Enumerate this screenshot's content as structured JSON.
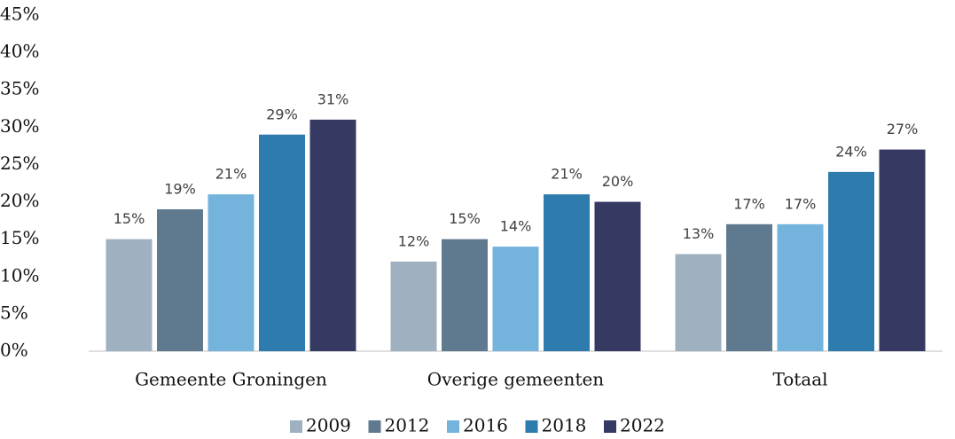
{
  "chart_data": {
    "type": "bar",
    "categories": [
      "Gemeente Groningen",
      "Overige gemeenten",
      "Totaal"
    ],
    "series": [
      {
        "name": "2009",
        "color": "#9fb1c0",
        "values": [
          15,
          12,
          13
        ],
        "value_labels": [
          "15%",
          "12%",
          "13%"
        ]
      },
      {
        "name": "2012",
        "color": "#5f7a8f",
        "values": [
          19,
          15,
          17
        ],
        "value_labels": [
          "19%",
          "15%",
          "17%"
        ]
      },
      {
        "name": "2016",
        "color": "#74b3dc",
        "values": [
          21,
          14,
          17
        ],
        "value_labels": [
          "21%",
          "14%",
          "17%"
        ]
      },
      {
        "name": "2018",
        "color": "#2e7bad",
        "values": [
          29,
          21,
          24
        ],
        "value_labels": [
          "29%",
          "21%",
          "24%"
        ]
      },
      {
        "name": "2022",
        "color": "#363a63",
        "values": [
          31,
          20,
          27
        ],
        "value_labels": [
          "31%",
          "20%",
          "27%"
        ]
      }
    ],
    "ylim": [
      0,
      45
    ],
    "yticks": [
      {
        "value": 0,
        "label": "0%"
      },
      {
        "value": 5,
        "label": "5%"
      },
      {
        "value": 10,
        "label": "10%"
      },
      {
        "value": 15,
        "label": "15%"
      },
      {
        "value": 20,
        "label": "20%"
      },
      {
        "value": 25,
        "label": "25%"
      },
      {
        "value": 30,
        "label": "30%"
      },
      {
        "value": 35,
        "label": "35%"
      },
      {
        "value": 40,
        "label": "40%"
      },
      {
        "value": 45,
        "label": "45%"
      }
    ],
    "grid": false,
    "legend": "bottom"
  }
}
